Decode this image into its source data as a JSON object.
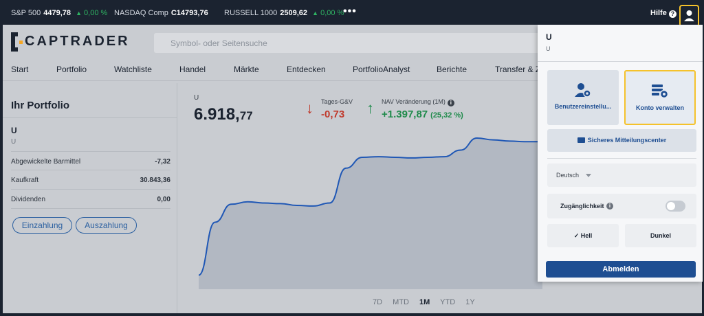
{
  "ticker": [
    {
      "name": "S&P 500",
      "value": "4479,78",
      "change": "0,00 %"
    },
    {
      "name": "NASDAQ Comp",
      "value": "C14793,76",
      "change": ""
    },
    {
      "name": "RUSSELL 1000",
      "value": "2509,62",
      "change": "0,00 %"
    }
  ],
  "topbar": {
    "more": "•••",
    "help": "Hilfe",
    "help_icon": "?"
  },
  "header": {
    "logo": "CAPTRADER",
    "search_placeholder": "Symbol- oder Seitensuche"
  },
  "nav": [
    "Start",
    "Portfolio",
    "Watchliste",
    "Handel",
    "Märkte",
    "Entdecken",
    "PortfolioAnalyst",
    "Berichte",
    "Transfer & Z"
  ],
  "sidebar": {
    "title": "Ihr Portfolio",
    "account": "U",
    "account_sub": "U",
    "rows": [
      {
        "label": "Abgewickelte Barmittel",
        "value": "-7,32"
      },
      {
        "label": "Kaufkraft",
        "value": "30.843,36"
      },
      {
        "label": "Dividenden",
        "value": "0,00"
      }
    ],
    "deposit": "Einzahlung",
    "withdraw": "Auszahlung"
  },
  "main": {
    "account_label": "U",
    "value_int": "6.918,",
    "value_dec": "77",
    "daily_label": "Tages-G&V",
    "daily_value": "-0,73",
    "nav_label": "NAV Veränderung (1M)",
    "nav_value": "+1.397,87",
    "nav_pct": "(25,32 %)",
    "ranges": [
      "7D",
      "MTD",
      "1M",
      "YTD",
      "1Y"
    ],
    "selected_range": "1M"
  },
  "chart_data": {
    "type": "area",
    "values": [
      6.0,
      50.0,
      65.0,
      67.0,
      66.0,
      65.5,
      64.0,
      63.5,
      66.0,
      95.0,
      104.0,
      104.5,
      104.0,
      103.5,
      104.0,
      104.5,
      110.0,
      120.0,
      118.5,
      117.5,
      117.0,
      117.0
    ],
    "line_color": "#1f57b5"
  },
  "panel": {
    "name": "U",
    "sub": "U",
    "settings": "Benutzereinstellu...",
    "manage": "Konto verwalten",
    "message_center": "Sicheres Mitteilungscenter",
    "language": "Deutsch",
    "accessibility": "Zugänglichkeit",
    "accessibility_info": "i",
    "theme_light": "Hell",
    "theme_dark": "Dunkel",
    "logout": "Abmelden"
  }
}
